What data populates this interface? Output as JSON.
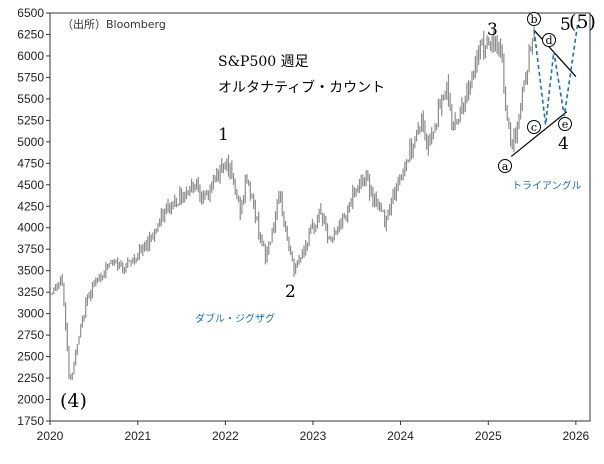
{
  "source_label": "（出所）Bloomberg",
  "title_line1": "S&P500 週足",
  "title_line2": "オルタナティブ・カウント",
  "annotations": {
    "wave_4_paren": "(4)",
    "wave_1": "1",
    "wave_2": "2",
    "wave_3": "3",
    "wave_4": "4",
    "wave_5_paren": "(5)",
    "wave_5": "5",
    "sub_a": "a",
    "sub_b": "b",
    "sub_c": "c",
    "sub_d": "d",
    "sub_e": "e",
    "double_zigzag": "ダブル・ジグザグ",
    "triangle": "トライアングル"
  },
  "colors": {
    "bars": "#8c8c8c",
    "projection": "#1f6fb5",
    "trendline": "#000000",
    "note": "#1f6fb5"
  },
  "chart_data": {
    "type": "bar",
    "subtype": "weekly OHLC range bars",
    "series_key_points": [
      {
        "x": "2020-01-03",
        "y": 3240
      },
      {
        "x": "2020-02-21",
        "y": 3380
      },
      {
        "x": "2020-03-23",
        "y": 2190
      },
      {
        "x": "2020-06-08",
        "y": 3230
      },
      {
        "x": "2020-09-02",
        "y": 3580
      },
      {
        "x": "2020-11-20",
        "y": 3560
      },
      {
        "x": "2021-01-29",
        "y": 3770
      },
      {
        "x": "2021-05-07",
        "y": 4230
      },
      {
        "x": "2021-09-03",
        "y": 4540
      },
      {
        "x": "2021-10-04",
        "y": 4300
      },
      {
        "x": "2022-01-04",
        "y": 4820
      },
      {
        "x": "2022-03-08",
        "y": 4170
      },
      {
        "x": "2022-03-29",
        "y": 4630
      },
      {
        "x": "2022-06-17",
        "y": 3640
      },
      {
        "x": "2022-08-16",
        "y": 4330
      },
      {
        "x": "2022-10-13",
        "y": 3490
      },
      {
        "x": "2023-02-02",
        "y": 4200
      },
      {
        "x": "2023-03-13",
        "y": 3810
      },
      {
        "x": "2023-07-31",
        "y": 4610
      },
      {
        "x": "2023-10-27",
        "y": 4100
      },
      {
        "x": "2024-03-28",
        "y": 5260
      },
      {
        "x": "2024-04-19",
        "y": 4950
      },
      {
        "x": "2024-07-16",
        "y": 5670
      },
      {
        "x": "2024-08-05",
        "y": 5120
      },
      {
        "x": "2024-12-06",
        "y": 6100
      },
      {
        "x": "2025-02-19",
        "y": 6150
      },
      {
        "x": "2025-04-07",
        "y": 4830
      },
      {
        "x": "2025-07-11",
        "y": 6300
      }
    ],
    "projection": [
      {
        "x": "2025-07-11",
        "y": 6300
      },
      {
        "x": "2025-08-28",
        "y": 5200
      },
      {
        "x": "2025-10-01",
        "y": 6050
      },
      {
        "x": "2025-11-14",
        "y": 5300
      },
      {
        "x": "2026-01-10",
        "y": 6400
      }
    ],
    "trendline_upper": [
      {
        "x": "2025-07-11",
        "y": 6300
      },
      {
        "x": "2026-01-01",
        "y": 5760
      }
    ],
    "trendline_lower": [
      {
        "x": "2025-04-07",
        "y": 4830
      },
      {
        "x": "2025-11-24",
        "y": 5350
      }
    ],
    "x_ticks": [
      "2020",
      "2021",
      "2022",
      "2023",
      "2024",
      "2025",
      "2026"
    ],
    "y_ticks": [
      1750,
      2000,
      2250,
      2500,
      2750,
      3000,
      3250,
      3500,
      3750,
      4000,
      4250,
      4500,
      4750,
      5000,
      5250,
      5500,
      5750,
      6000,
      6250,
      6500
    ],
    "xlim": [
      "2020-01-01",
      "2026-03-01"
    ],
    "ylim": [
      1750,
      6500
    ],
    "grid": false
  }
}
